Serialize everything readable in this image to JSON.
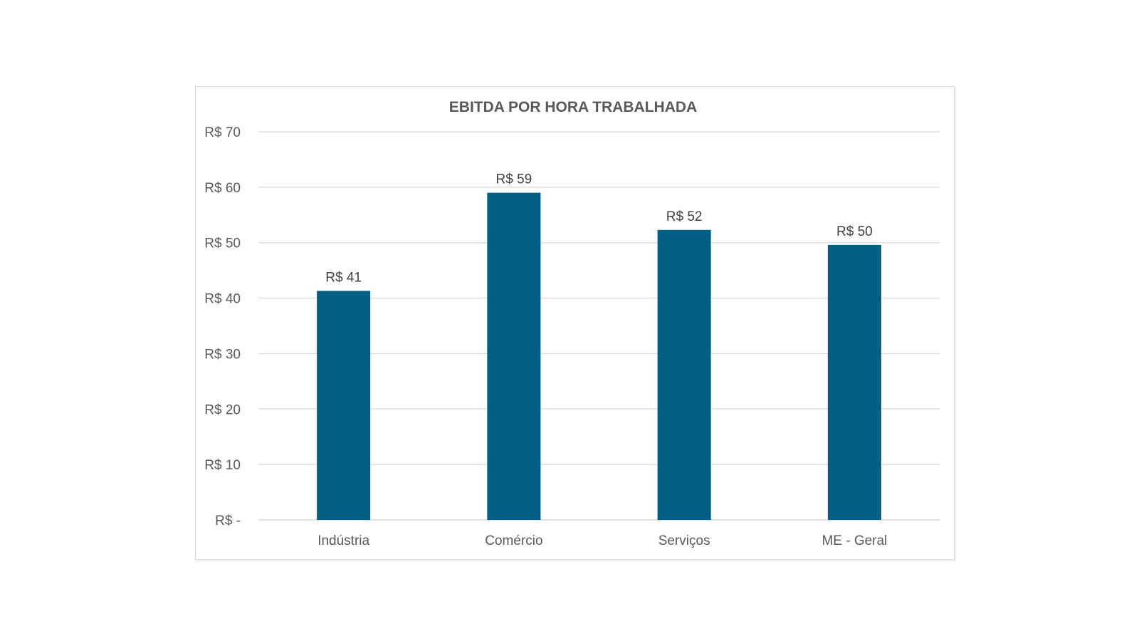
{
  "chart_data": {
    "type": "bar",
    "title": "EBITDA POR HORA TRABALHADA",
    "xlabel": "",
    "ylabel": "",
    "categories": [
      "Indústria",
      "Comércio",
      "Serviços",
      "ME - Geral"
    ],
    "values": [
      41.3,
      59.0,
      52.3,
      49.6
    ],
    "data_labels": [
      "R$ 41",
      "R$ 59",
      "R$ 52",
      "R$ 50"
    ],
    "ylim": [
      0,
      70
    ],
    "yticks": [
      0,
      10,
      20,
      30,
      40,
      50,
      60,
      70
    ],
    "ytick_labels": [
      "R$ -",
      "R$ 10",
      "R$ 20",
      "R$ 30",
      "R$ 40",
      "R$ 50",
      "R$ 60",
      "R$ 70"
    ],
    "grid": true,
    "legend": "none",
    "bar_color": "#005f83"
  }
}
